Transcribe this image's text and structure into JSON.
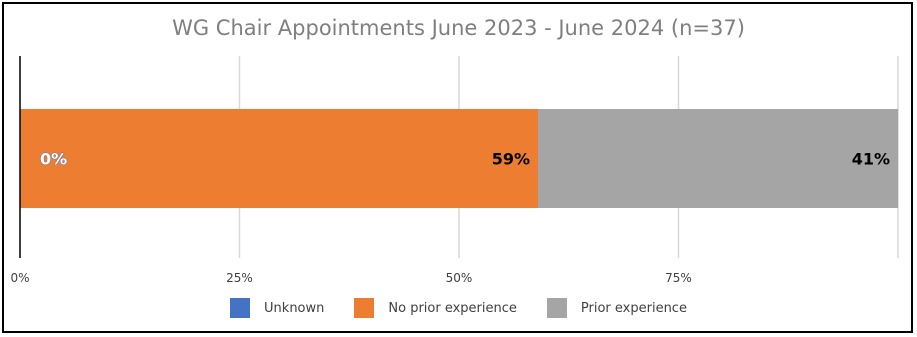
{
  "chart_data": {
    "type": "bar",
    "orientation": "horizontal-stacked",
    "title": "WG Chair Appointments June 2023 - June 2024 (n=37)",
    "x_ticks": [
      "0%",
      "25%",
      "50%",
      "75%"
    ],
    "xlim": [
      0,
      100
    ],
    "grid": "vertical",
    "legend_position": "bottom",
    "series": [
      {
        "name": "Unknown",
        "value": 0,
        "label": "0%",
        "color": "#4472c4"
      },
      {
        "name": "No prior experience",
        "value": 59,
        "label": "59%",
        "color": "#ed7d31"
      },
      {
        "name": "Prior experience",
        "value": 41,
        "label": "41%",
        "color": "#a5a5a5"
      }
    ]
  }
}
